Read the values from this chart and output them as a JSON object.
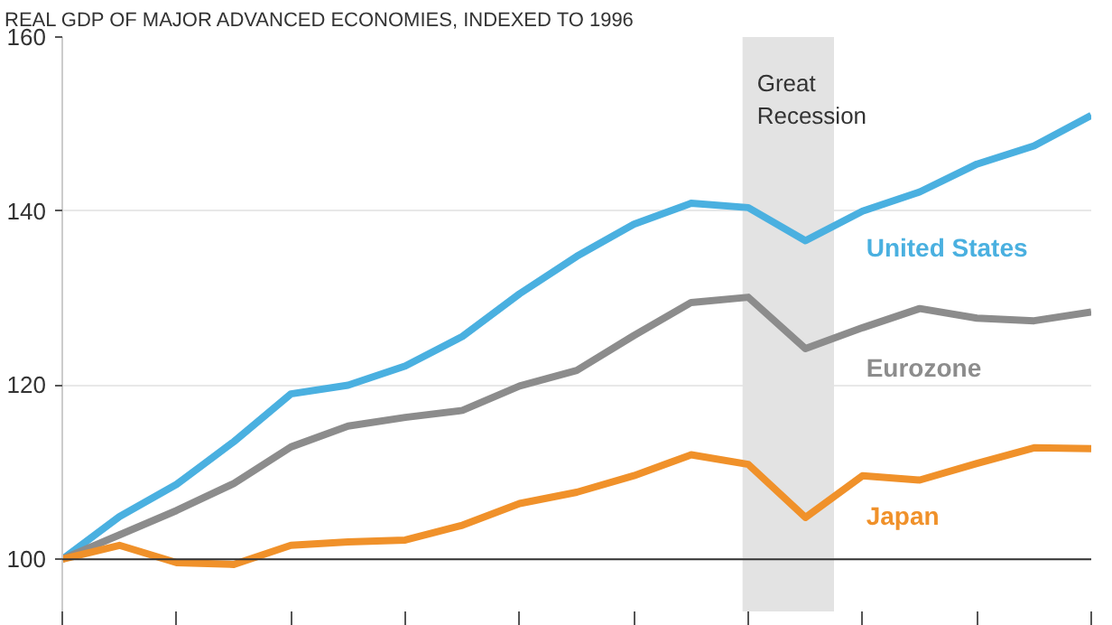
{
  "chart_data": {
    "type": "line",
    "title": "REAL GDP OF MAJOR ADVANCED ECONOMIES, INDEXED TO 1996",
    "categories": [
      null,
      null,
      null,
      null,
      null,
      null,
      null,
      null,
      null,
      null,
      null,
      null,
      null,
      null,
      null,
      null,
      null,
      null,
      null
    ],
    "series": [
      {
        "name": "United States",
        "color": "#4ab0e0",
        "values": [
          100,
          104.9,
          108.6,
          113.5,
          119,
          120,
          122.2,
          125.6,
          130.5,
          134.8,
          138.5,
          140.9,
          140.4,
          136.6,
          140,
          142.2,
          145.4,
          147.5,
          151
        ]
      },
      {
        "name": "Eurozone",
        "color": "#8c8c8c",
        "values": [
          100,
          102.8,
          105.6,
          108.7,
          112.9,
          115.3,
          116.3,
          117.1,
          119.9,
          121.7,
          125.7,
          129.5,
          130.1,
          124.2,
          126.6,
          128.8,
          127.7,
          127.4,
          128.4
        ]
      },
      {
        "name": "Japan",
        "color": "#f0912a",
        "values": [
          100,
          101.6,
          99.6,
          99.4,
          101.6,
          102,
          102.2,
          103.9,
          106.4,
          107.7,
          109.6,
          112,
          110.9,
          104.8,
          109.6,
          109.1,
          111,
          112.8,
          112.7
        ]
      }
    ],
    "ylim": [
      94,
      160
    ],
    "yticks": [
      100,
      120,
      140,
      160
    ],
    "grid": "y",
    "annotations": [
      "Great\nRecession"
    ],
    "ref_lines": [
      {
        "axis": "y",
        "value": 100,
        "color": "#333333"
      }
    ],
    "line_style": "solid"
  }
}
